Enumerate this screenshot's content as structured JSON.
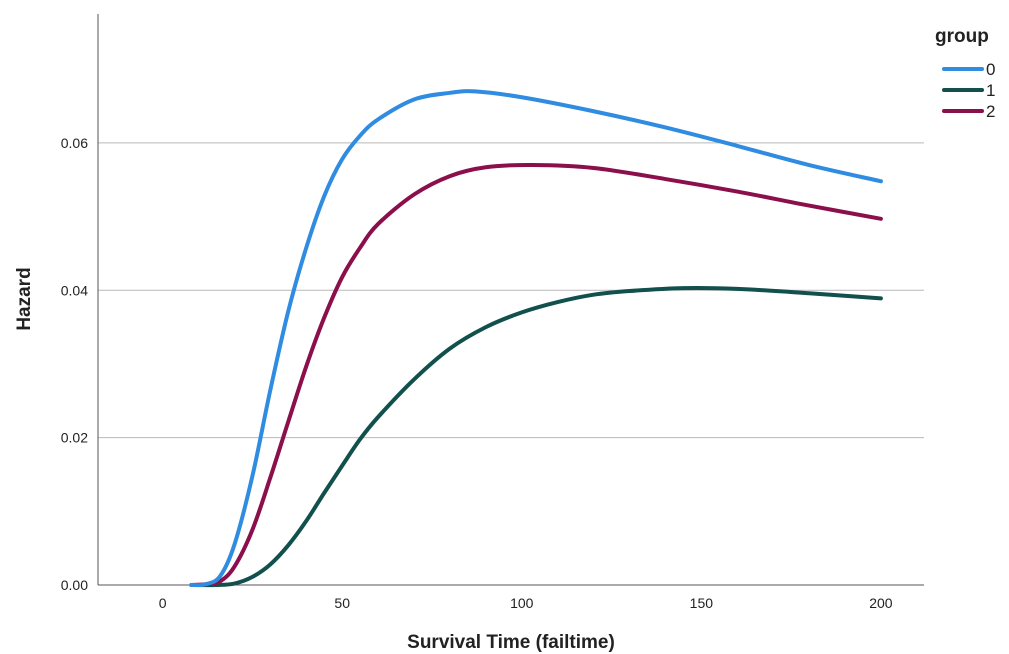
{
  "chart_data": {
    "type": "line",
    "xlabel": "Survival Time (failtime)",
    "ylabel": "Hazard",
    "xlim": [
      -18,
      212
    ],
    "ylim": [
      0,
      0.0775
    ],
    "x_ticks": [
      0,
      50,
      100,
      150,
      200
    ],
    "x_tick_labels": [
      "0",
      "50",
      "100",
      "150",
      "200"
    ],
    "y_ticks": [
      0,
      0.02,
      0.04,
      0.06
    ],
    "y_tick_labels": [
      "0.00",
      "0.02",
      "0.04",
      "0.06"
    ],
    "grid": "horizontal",
    "legend": {
      "title": "group",
      "position": "top-right"
    },
    "series": [
      {
        "name": "0",
        "color": "#2f8ce0",
        "x": [
          8,
          12,
          16,
          20,
          25,
          30,
          35,
          40,
          45,
          50,
          55,
          60,
          70,
          80,
          87,
          100,
          120,
          140,
          160,
          180,
          200
        ],
        "y": [
          0.0,
          0.0001,
          0.0012,
          0.0055,
          0.0148,
          0.0265,
          0.0372,
          0.0458,
          0.0528,
          0.0578,
          0.061,
          0.0632,
          0.0659,
          0.0668,
          0.067,
          0.0662,
          0.0643,
          0.0621,
          0.0596,
          0.057,
          0.0548
        ]
      },
      {
        "name": "1",
        "color": "#11504c",
        "x": [
          8,
          15,
          20,
          25,
          30,
          35,
          40,
          45,
          50,
          55,
          60,
          70,
          80,
          90,
          100,
          110,
          120,
          130,
          145,
          160,
          180,
          200
        ],
        "y": [
          0.0,
          0.0,
          0.0002,
          0.0011,
          0.0028,
          0.0054,
          0.0087,
          0.0125,
          0.0162,
          0.0198,
          0.0228,
          0.0279,
          0.0321,
          0.035,
          0.037,
          0.0384,
          0.0394,
          0.0399,
          0.0403,
          0.0402,
          0.0396,
          0.0389
        ]
      },
      {
        "name": "2",
        "color": "#8a0f4a",
        "x": [
          8,
          12,
          16,
          20,
          25,
          30,
          35,
          40,
          45,
          50,
          55,
          60,
          70,
          80,
          90,
          103,
          120,
          140,
          160,
          180,
          200
        ],
        "y": [
          0.0,
          0.0001,
          0.0005,
          0.0025,
          0.0075,
          0.0146,
          0.0222,
          0.0297,
          0.0363,
          0.0418,
          0.0458,
          0.049,
          0.053,
          0.0555,
          0.0567,
          0.057,
          0.0566,
          0.0551,
          0.0534,
          0.0515,
          0.0497
        ]
      }
    ]
  }
}
